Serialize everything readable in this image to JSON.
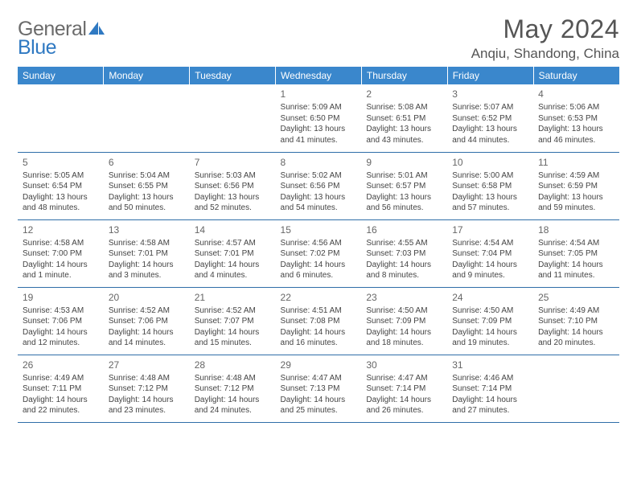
{
  "brand": {
    "word1": "General",
    "word2": "Blue"
  },
  "header": {
    "title": "May 2024",
    "location": "Anqiu, Shandong, China"
  },
  "colors": {
    "header_bg": "#3a87cc",
    "header_text": "#ffffff",
    "grid_line": "#2f6ea8",
    "text": "#444444",
    "title_text": "#555555",
    "brand_gray": "#6b6b6b",
    "brand_blue": "#2f79c2"
  },
  "columns": [
    "Sunday",
    "Monday",
    "Tuesday",
    "Wednesday",
    "Thursday",
    "Friday",
    "Saturday"
  ],
  "weeks": [
    [
      {
        "day": "",
        "sunrise": "",
        "sunset": "",
        "daylight1": "",
        "daylight2": ""
      },
      {
        "day": "",
        "sunrise": "",
        "sunset": "",
        "daylight1": "",
        "daylight2": ""
      },
      {
        "day": "",
        "sunrise": "",
        "sunset": "",
        "daylight1": "",
        "daylight2": ""
      },
      {
        "day": "1",
        "sunrise": "Sunrise: 5:09 AM",
        "sunset": "Sunset: 6:50 PM",
        "daylight1": "Daylight: 13 hours",
        "daylight2": "and 41 minutes."
      },
      {
        "day": "2",
        "sunrise": "Sunrise: 5:08 AM",
        "sunset": "Sunset: 6:51 PM",
        "daylight1": "Daylight: 13 hours",
        "daylight2": "and 43 minutes."
      },
      {
        "day": "3",
        "sunrise": "Sunrise: 5:07 AM",
        "sunset": "Sunset: 6:52 PM",
        "daylight1": "Daylight: 13 hours",
        "daylight2": "and 44 minutes."
      },
      {
        "day": "4",
        "sunrise": "Sunrise: 5:06 AM",
        "sunset": "Sunset: 6:53 PM",
        "daylight1": "Daylight: 13 hours",
        "daylight2": "and 46 minutes."
      }
    ],
    [
      {
        "day": "5",
        "sunrise": "Sunrise: 5:05 AM",
        "sunset": "Sunset: 6:54 PM",
        "daylight1": "Daylight: 13 hours",
        "daylight2": "and 48 minutes."
      },
      {
        "day": "6",
        "sunrise": "Sunrise: 5:04 AM",
        "sunset": "Sunset: 6:55 PM",
        "daylight1": "Daylight: 13 hours",
        "daylight2": "and 50 minutes."
      },
      {
        "day": "7",
        "sunrise": "Sunrise: 5:03 AM",
        "sunset": "Sunset: 6:56 PM",
        "daylight1": "Daylight: 13 hours",
        "daylight2": "and 52 minutes."
      },
      {
        "day": "8",
        "sunrise": "Sunrise: 5:02 AM",
        "sunset": "Sunset: 6:56 PM",
        "daylight1": "Daylight: 13 hours",
        "daylight2": "and 54 minutes."
      },
      {
        "day": "9",
        "sunrise": "Sunrise: 5:01 AM",
        "sunset": "Sunset: 6:57 PM",
        "daylight1": "Daylight: 13 hours",
        "daylight2": "and 56 minutes."
      },
      {
        "day": "10",
        "sunrise": "Sunrise: 5:00 AM",
        "sunset": "Sunset: 6:58 PM",
        "daylight1": "Daylight: 13 hours",
        "daylight2": "and 57 minutes."
      },
      {
        "day": "11",
        "sunrise": "Sunrise: 4:59 AM",
        "sunset": "Sunset: 6:59 PM",
        "daylight1": "Daylight: 13 hours",
        "daylight2": "and 59 minutes."
      }
    ],
    [
      {
        "day": "12",
        "sunrise": "Sunrise: 4:58 AM",
        "sunset": "Sunset: 7:00 PM",
        "daylight1": "Daylight: 14 hours",
        "daylight2": "and 1 minute."
      },
      {
        "day": "13",
        "sunrise": "Sunrise: 4:58 AM",
        "sunset": "Sunset: 7:01 PM",
        "daylight1": "Daylight: 14 hours",
        "daylight2": "and 3 minutes."
      },
      {
        "day": "14",
        "sunrise": "Sunrise: 4:57 AM",
        "sunset": "Sunset: 7:01 PM",
        "daylight1": "Daylight: 14 hours",
        "daylight2": "and 4 minutes."
      },
      {
        "day": "15",
        "sunrise": "Sunrise: 4:56 AM",
        "sunset": "Sunset: 7:02 PM",
        "daylight1": "Daylight: 14 hours",
        "daylight2": "and 6 minutes."
      },
      {
        "day": "16",
        "sunrise": "Sunrise: 4:55 AM",
        "sunset": "Sunset: 7:03 PM",
        "daylight1": "Daylight: 14 hours",
        "daylight2": "and 8 minutes."
      },
      {
        "day": "17",
        "sunrise": "Sunrise: 4:54 AM",
        "sunset": "Sunset: 7:04 PM",
        "daylight1": "Daylight: 14 hours",
        "daylight2": "and 9 minutes."
      },
      {
        "day": "18",
        "sunrise": "Sunrise: 4:54 AM",
        "sunset": "Sunset: 7:05 PM",
        "daylight1": "Daylight: 14 hours",
        "daylight2": "and 11 minutes."
      }
    ],
    [
      {
        "day": "19",
        "sunrise": "Sunrise: 4:53 AM",
        "sunset": "Sunset: 7:06 PM",
        "daylight1": "Daylight: 14 hours",
        "daylight2": "and 12 minutes."
      },
      {
        "day": "20",
        "sunrise": "Sunrise: 4:52 AM",
        "sunset": "Sunset: 7:06 PM",
        "daylight1": "Daylight: 14 hours",
        "daylight2": "and 14 minutes."
      },
      {
        "day": "21",
        "sunrise": "Sunrise: 4:52 AM",
        "sunset": "Sunset: 7:07 PM",
        "daylight1": "Daylight: 14 hours",
        "daylight2": "and 15 minutes."
      },
      {
        "day": "22",
        "sunrise": "Sunrise: 4:51 AM",
        "sunset": "Sunset: 7:08 PM",
        "daylight1": "Daylight: 14 hours",
        "daylight2": "and 16 minutes."
      },
      {
        "day": "23",
        "sunrise": "Sunrise: 4:50 AM",
        "sunset": "Sunset: 7:09 PM",
        "daylight1": "Daylight: 14 hours",
        "daylight2": "and 18 minutes."
      },
      {
        "day": "24",
        "sunrise": "Sunrise: 4:50 AM",
        "sunset": "Sunset: 7:09 PM",
        "daylight1": "Daylight: 14 hours",
        "daylight2": "and 19 minutes."
      },
      {
        "day": "25",
        "sunrise": "Sunrise: 4:49 AM",
        "sunset": "Sunset: 7:10 PM",
        "daylight1": "Daylight: 14 hours",
        "daylight2": "and 20 minutes."
      }
    ],
    [
      {
        "day": "26",
        "sunrise": "Sunrise: 4:49 AM",
        "sunset": "Sunset: 7:11 PM",
        "daylight1": "Daylight: 14 hours",
        "daylight2": "and 22 minutes."
      },
      {
        "day": "27",
        "sunrise": "Sunrise: 4:48 AM",
        "sunset": "Sunset: 7:12 PM",
        "daylight1": "Daylight: 14 hours",
        "daylight2": "and 23 minutes."
      },
      {
        "day": "28",
        "sunrise": "Sunrise: 4:48 AM",
        "sunset": "Sunset: 7:12 PM",
        "daylight1": "Daylight: 14 hours",
        "daylight2": "and 24 minutes."
      },
      {
        "day": "29",
        "sunrise": "Sunrise: 4:47 AM",
        "sunset": "Sunset: 7:13 PM",
        "daylight1": "Daylight: 14 hours",
        "daylight2": "and 25 minutes."
      },
      {
        "day": "30",
        "sunrise": "Sunrise: 4:47 AM",
        "sunset": "Sunset: 7:14 PM",
        "daylight1": "Daylight: 14 hours",
        "daylight2": "and 26 minutes."
      },
      {
        "day": "31",
        "sunrise": "Sunrise: 4:46 AM",
        "sunset": "Sunset: 7:14 PM",
        "daylight1": "Daylight: 14 hours",
        "daylight2": "and 27 minutes."
      },
      {
        "day": "",
        "sunrise": "",
        "sunset": "",
        "daylight1": "",
        "daylight2": ""
      }
    ]
  ]
}
